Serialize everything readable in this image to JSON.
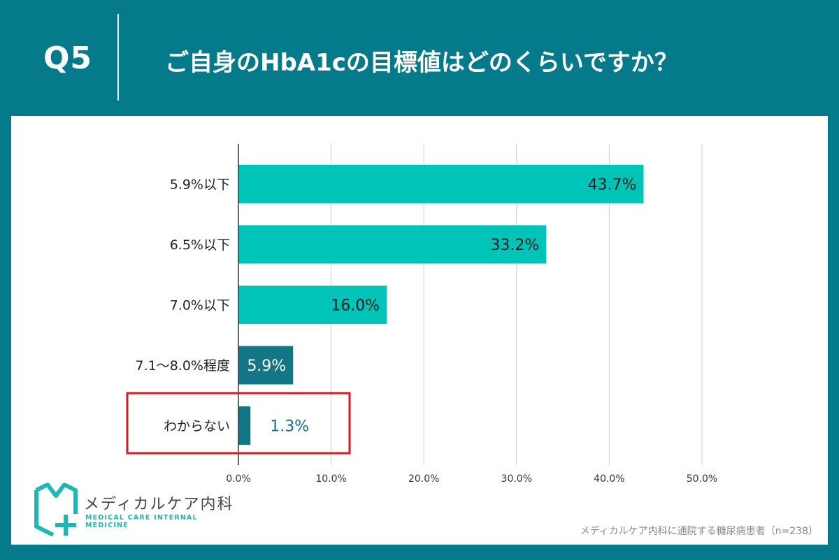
{
  "header": {
    "question_number": "Q5",
    "question_title": "ご自身のHbA1cの目標値はどのくらいですか？"
  },
  "brand": {
    "name": "メディカルケア内科",
    "subtitle": "MEDICAL CARE INTERNAL MEDICINE",
    "logo_icon": "medical-care-logo-icon"
  },
  "footnote": "メディカルケア内科に通院する糖尿病患者（n=238）",
  "colors": {
    "background": "#047a8a",
    "bar_light": "#00c4b8",
    "bar_dark": "#137686",
    "highlight_border": "#e0191f"
  },
  "chart_data": {
    "type": "bar",
    "orientation": "horizontal",
    "categories": [
      "5.9%以下",
      "6.5%以下",
      "7.0%以下",
      "7.1〜8.0%程度",
      "わからない"
    ],
    "values": [
      43.7,
      33.2,
      16.0,
      5.9,
      1.3
    ],
    "data_labels": [
      "43.7%",
      "33.2%",
      "16.0%",
      "5.9%",
      "1.3%"
    ],
    "bar_colors": [
      "#00c4b8",
      "#00c4b8",
      "#00c4b8",
      "#137686",
      "#137686"
    ],
    "xlim": [
      0,
      50
    ],
    "x_ticks": [
      0,
      10,
      20,
      30,
      40,
      50
    ],
    "x_tick_labels": [
      "0.0%",
      "10.0%",
      "20.0%",
      "30.0%",
      "40.0%",
      "50.0%"
    ],
    "grid": true,
    "highlighted_category": "わからない"
  }
}
